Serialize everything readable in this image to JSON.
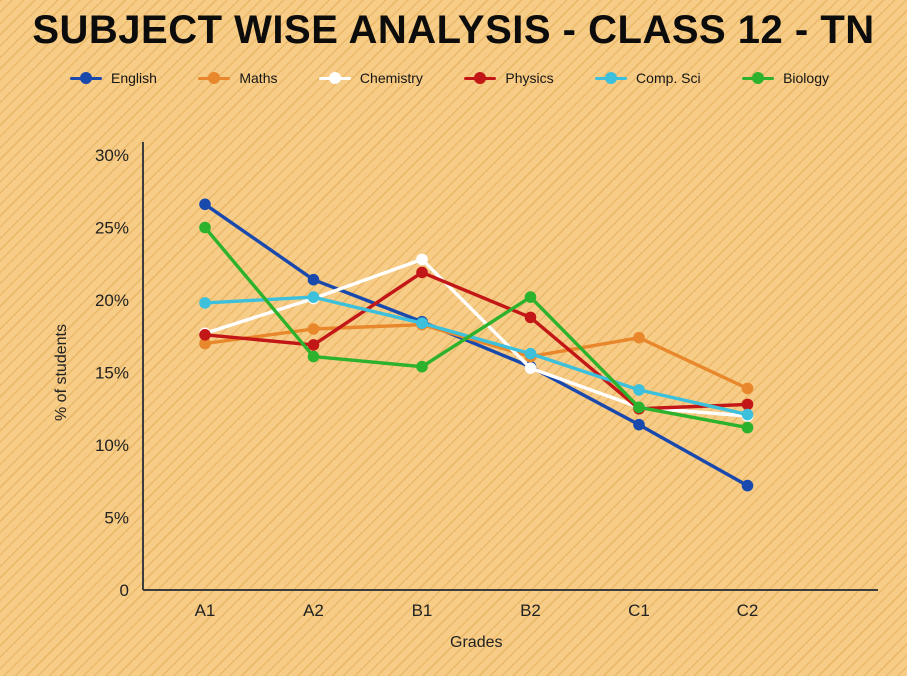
{
  "chart_data": {
    "type": "line",
    "title": "SUBJECT WISE ANALYSIS - CLASS 12 - TN",
    "categories": [
      "A1",
      "A2",
      "B1",
      "B2",
      "C1",
      "C2"
    ],
    "xlabel": "Grades",
    "ylabel": "% of students",
    "ylim": [
      0,
      30
    ],
    "ytick_values": [
      0,
      5,
      10,
      15,
      20,
      25,
      30
    ],
    "ytick_labels": [
      "0",
      "5%",
      "10%",
      "15%",
      "20%",
      "25%",
      "30%"
    ],
    "grid": false,
    "legend_position": "top",
    "marker": "circle",
    "series": [
      {
        "name": "English",
        "color": "#1a49ae",
        "values": [
          26.6,
          21.4,
          18.5,
          15.4,
          11.4,
          7.2
        ]
      },
      {
        "name": "Maths",
        "color": "#e8872b",
        "values": [
          17.0,
          18.0,
          18.3,
          16.1,
          17.4,
          13.9
        ]
      },
      {
        "name": "Chemistry",
        "color": "#ffffff",
        "values": [
          17.7,
          20.1,
          22.8,
          15.3,
          12.6,
          12.0
        ]
      },
      {
        "name": "Physics",
        "color": "#c31717",
        "values": [
          17.6,
          16.9,
          21.9,
          18.8,
          12.5,
          12.8
        ]
      },
      {
        "name": "Comp. Sci",
        "color": "#3cc0dc",
        "values": [
          19.8,
          20.2,
          18.4,
          16.3,
          13.8,
          12.1
        ]
      },
      {
        "name": "Biology",
        "color": "#2cb22c",
        "values": [
          25.0,
          16.1,
          15.4,
          20.2,
          12.6,
          11.2
        ]
      }
    ]
  }
}
